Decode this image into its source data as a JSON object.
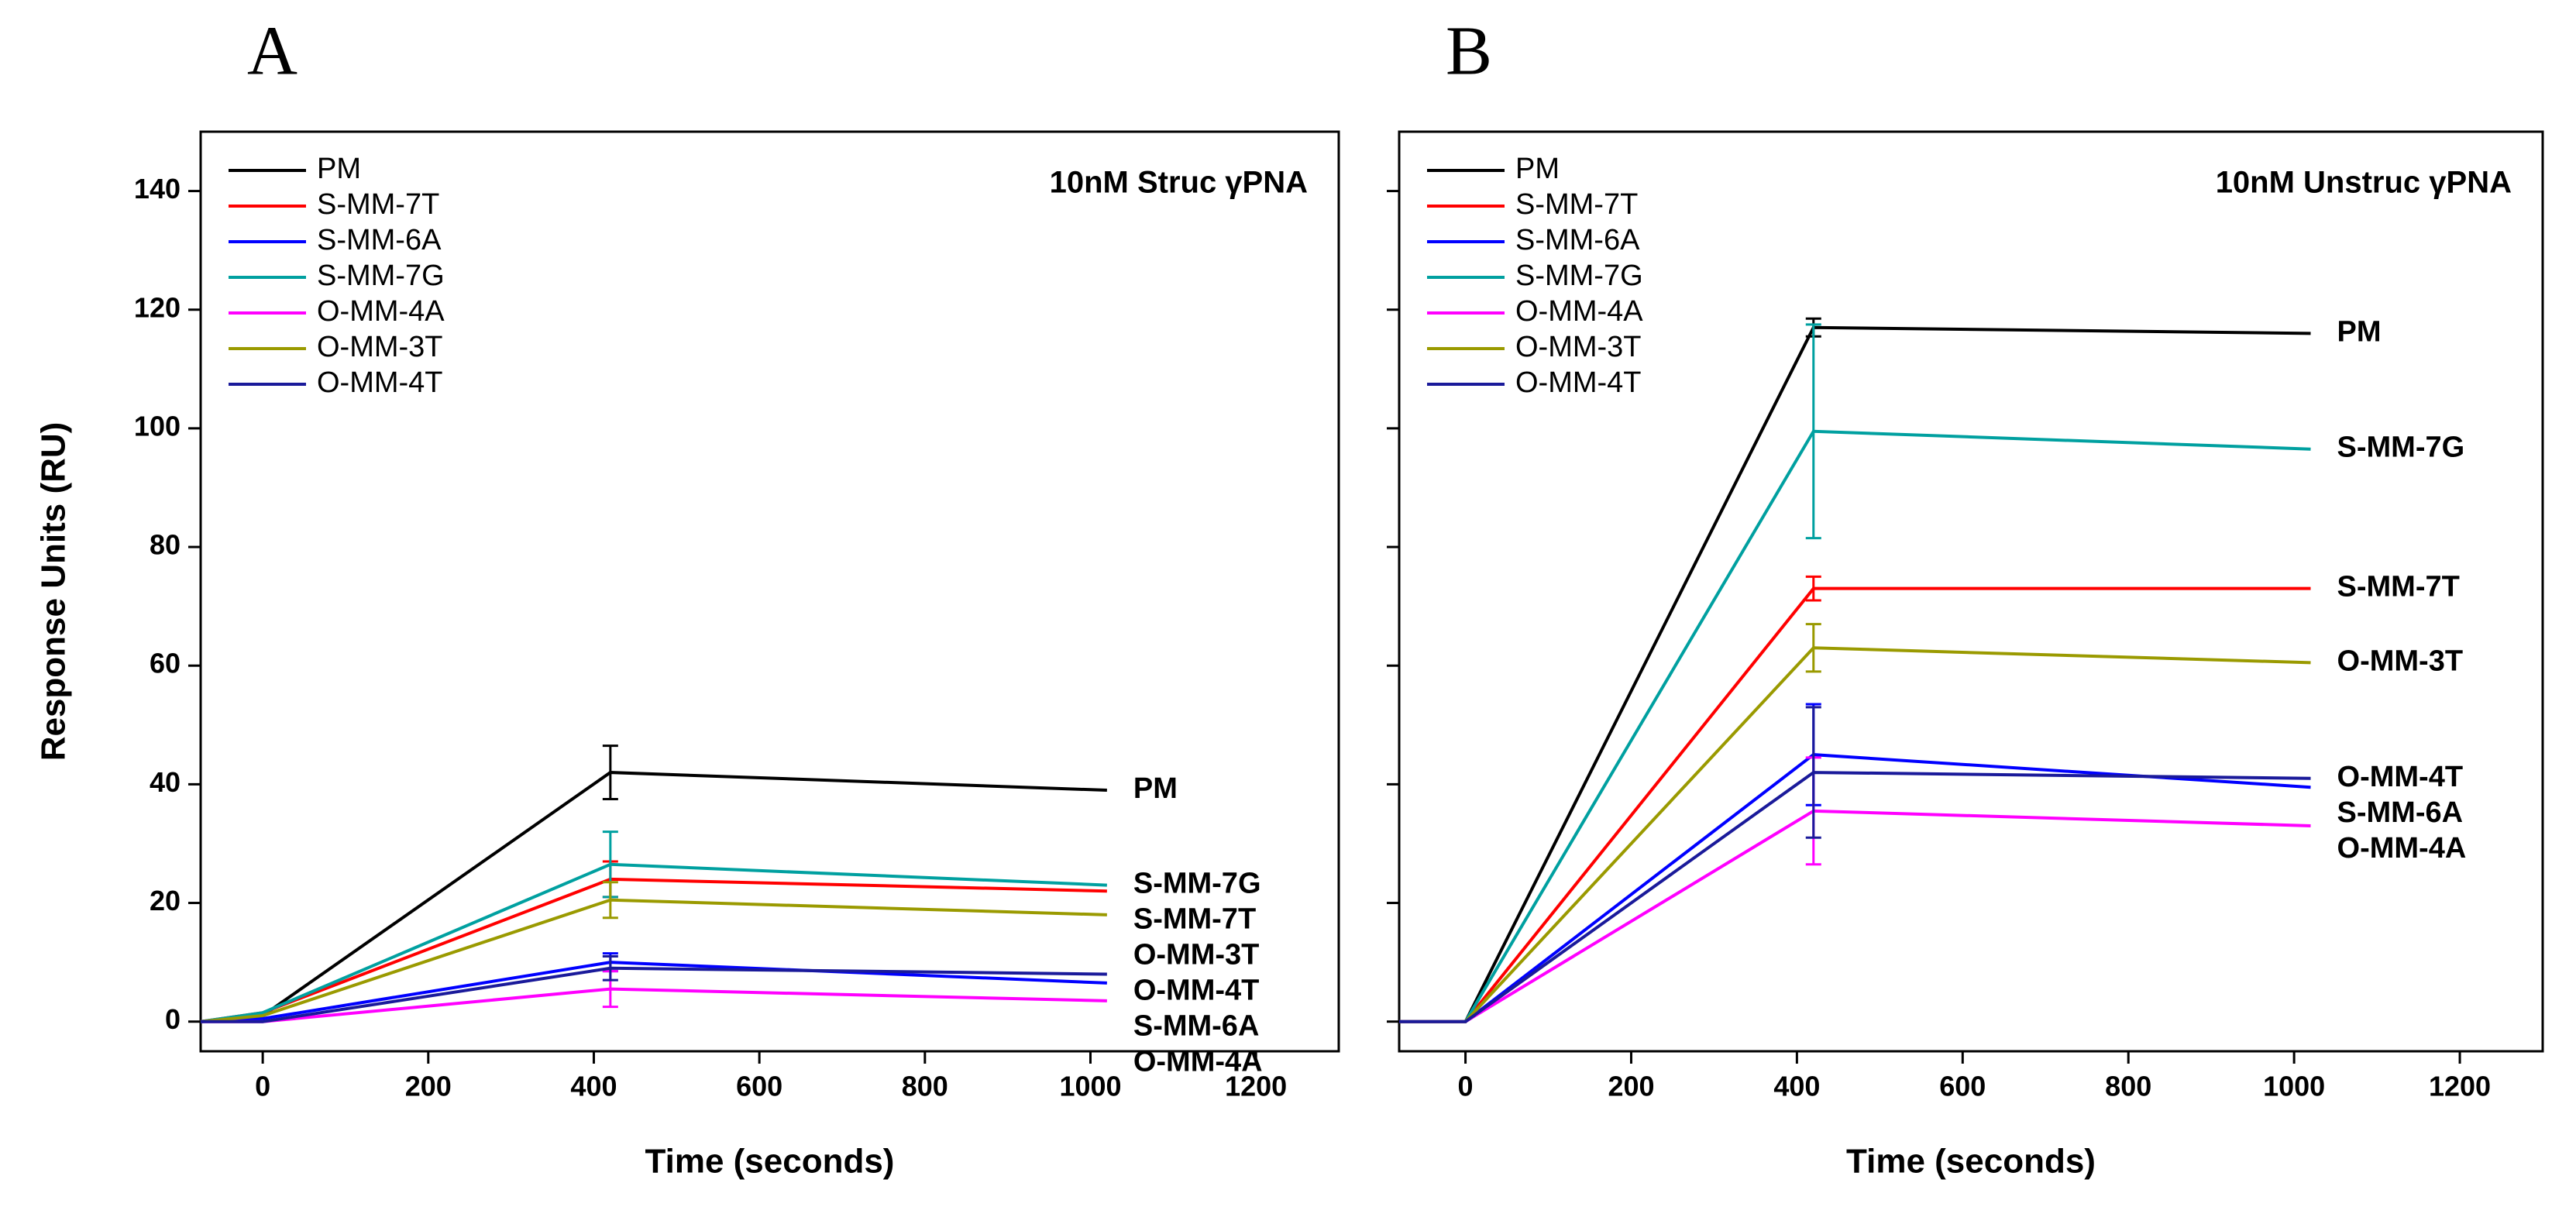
{
  "chart_data": [
    {
      "type": "line",
      "panel_label": "A",
      "title": "10nM Struc γPNA",
      "x_label": "Time (seconds)",
      "y_label": "Response Units (RU)",
      "x": [
        -75,
        0,
        420,
        1020
      ],
      "xlim": [
        -75,
        1300
      ],
      "ylim": [
        -5,
        150
      ],
      "xticks": [
        0,
        200,
        400,
        600,
        800,
        1000,
        1200
      ],
      "yticks": [
        0,
        20,
        40,
        60,
        80,
        100,
        120,
        140
      ],
      "series": [
        {
          "name": "PM",
          "color": "#000000",
          "values": [
            0,
            1,
            42,
            39
          ],
          "error": 4.5
        },
        {
          "name": "S-MM-7T",
          "color": "#ff0000",
          "values": [
            0,
            1.5,
            24,
            22
          ],
          "error": 3
        },
        {
          "name": "S-MM-6A",
          "color": "#0000ff",
          "values": [
            0,
            0.5,
            10,
            6.5
          ],
          "error": 1.5
        },
        {
          "name": "S-MM-7G",
          "color": "#00a0a0",
          "values": [
            0,
            1.5,
            26.5,
            23
          ],
          "error": 5.5
        },
        {
          "name": "O-MM-4A",
          "color": "#ff00ff",
          "values": [
            0,
            0,
            5.5,
            3.5
          ],
          "error": 3
        },
        {
          "name": "O-MM-3T",
          "color": "#9a9a00",
          "values": [
            0,
            1,
            20.5,
            18
          ],
          "error": 3
        },
        {
          "name": "O-MM-4T",
          "color": "#1a1a9a",
          "values": [
            0,
            0,
            9,
            8
          ],
          "error": 2
        }
      ]
    },
    {
      "type": "line",
      "panel_label": "B",
      "title": "10nM Unstruc γPNA",
      "x_label": "Time (seconds)",
      "x": [
        -80,
        0,
        420,
        1020
      ],
      "xlim": [
        -80,
        1300
      ],
      "ylim": [
        -5,
        150
      ],
      "xticks": [
        0,
        200,
        400,
        600,
        800,
        1000,
        1200
      ],
      "yticks": [
        0,
        20,
        40,
        60,
        80,
        100,
        120,
        140
      ],
      "series": [
        {
          "name": "PM",
          "color": "#000000",
          "values": [
            0,
            0,
            117,
            116
          ],
          "error": 1.5
        },
        {
          "name": "S-MM-7T",
          "color": "#ff0000",
          "values": [
            0,
            0,
            73,
            73
          ],
          "error": 2
        },
        {
          "name": "S-MM-6A",
          "color": "#0000ff",
          "values": [
            0,
            0,
            45,
            39.5
          ],
          "error": 8.5
        },
        {
          "name": "S-MM-7G",
          "color": "#00a0a0",
          "values": [
            0,
            0,
            99.5,
            96.5
          ],
          "error": 18
        },
        {
          "name": "O-MM-4A",
          "color": "#ff00ff",
          "values": [
            0,
            0,
            35.5,
            33
          ],
          "error": 9
        },
        {
          "name": "O-MM-3T",
          "color": "#9a9a00",
          "values": [
            0,
            0,
            63,
            60.5
          ],
          "error": 4
        },
        {
          "name": "O-MM-4T",
          "color": "#1a1a9a",
          "values": [
            0,
            0,
            42,
            41
          ],
          "error": 11
        }
      ]
    }
  ]
}
